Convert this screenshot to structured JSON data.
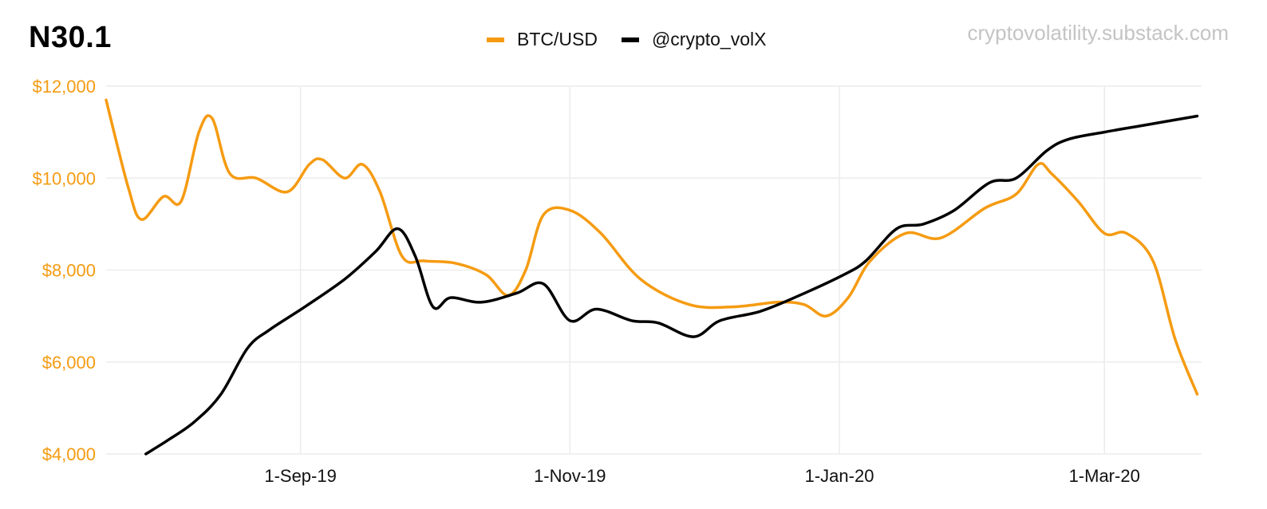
{
  "chart_data": {
    "type": "line",
    "title": "N30.1",
    "watermark": "cryptovolatility.substack.com",
    "x_ticks": [
      "1-Sep-19",
      "1-Nov-19",
      "1-Jan-20",
      "1-Mar-20"
    ],
    "x_tick_dates": [
      "2019-09-01",
      "2019-11-01",
      "2020-01-01",
      "2020-03-01"
    ],
    "x_range": [
      "2019-07-19",
      "2020-03-23"
    ],
    "y_ticks": [
      "$4,000",
      "$6,000",
      "$8,000",
      "$10,000",
      "$12,000"
    ],
    "ylim": [
      4000,
      12000
    ],
    "legend_position": "top-center",
    "grid": true,
    "series": [
      {
        "name": "BTC/USD",
        "color": "#F59B12",
        "points": [
          [
            "2019-07-19",
            11700
          ],
          [
            "2019-07-24",
            9800
          ],
          [
            "2019-07-27",
            9100
          ],
          [
            "2019-08-01",
            9600
          ],
          [
            "2019-08-05",
            9500
          ],
          [
            "2019-08-09",
            11000
          ],
          [
            "2019-08-12",
            11300
          ],
          [
            "2019-08-16",
            10100
          ],
          [
            "2019-08-22",
            10000
          ],
          [
            "2019-08-29",
            9700
          ],
          [
            "2019-09-03",
            10300
          ],
          [
            "2019-09-06",
            10400
          ],
          [
            "2019-09-11",
            10000
          ],
          [
            "2019-09-15",
            10300
          ],
          [
            "2019-09-19",
            9700
          ],
          [
            "2019-09-24",
            8300
          ],
          [
            "2019-09-29",
            8200
          ],
          [
            "2019-10-06",
            8150
          ],
          [
            "2019-10-13",
            7900
          ],
          [
            "2019-10-18",
            7450
          ],
          [
            "2019-10-22",
            8000
          ],
          [
            "2019-10-26",
            9200
          ],
          [
            "2019-11-01",
            9300
          ],
          [
            "2019-11-08",
            8800
          ],
          [
            "2019-11-17",
            7800
          ],
          [
            "2019-11-28",
            7250
          ],
          [
            "2019-12-08",
            7200
          ],
          [
            "2019-12-18",
            7300
          ],
          [
            "2019-12-24",
            7250
          ],
          [
            "2019-12-29",
            7000
          ],
          [
            "2020-01-03",
            7400
          ],
          [
            "2020-01-08",
            8200
          ],
          [
            "2020-01-16",
            8800
          ],
          [
            "2020-01-24",
            8700
          ],
          [
            "2020-02-03",
            9350
          ],
          [
            "2020-02-10",
            9650
          ],
          [
            "2020-02-15",
            10300
          ],
          [
            "2020-02-18",
            10100
          ],
          [
            "2020-02-24",
            9500
          ],
          [
            "2020-03-01",
            8800
          ],
          [
            "2020-03-06",
            8800
          ],
          [
            "2020-03-12",
            8200
          ],
          [
            "2020-03-17",
            6500
          ],
          [
            "2020-03-22",
            5300
          ]
        ]
      },
      {
        "name": "@crypto_volX",
        "color": "#000000",
        "points": [
          [
            "2019-07-28",
            4000
          ],
          [
            "2019-08-02",
            4300
          ],
          [
            "2019-08-08",
            4700
          ],
          [
            "2019-08-14",
            5300
          ],
          [
            "2019-08-20",
            6300
          ],
          [
            "2019-08-25",
            6700
          ],
          [
            "2019-09-02",
            7200
          ],
          [
            "2019-09-11",
            7800
          ],
          [
            "2019-09-18",
            8400
          ],
          [
            "2019-09-23",
            8900
          ],
          [
            "2019-09-27",
            8300
          ],
          [
            "2019-10-01",
            7200
          ],
          [
            "2019-10-05",
            7400
          ],
          [
            "2019-10-12",
            7300
          ],
          [
            "2019-10-20",
            7500
          ],
          [
            "2019-10-26",
            7700
          ],
          [
            "2019-11-01",
            6900
          ],
          [
            "2019-11-07",
            7150
          ],
          [
            "2019-11-15",
            6900
          ],
          [
            "2019-11-21",
            6850
          ],
          [
            "2019-11-29",
            6550
          ],
          [
            "2019-12-05",
            6900
          ],
          [
            "2019-12-14",
            7100
          ],
          [
            "2019-12-23",
            7450
          ],
          [
            "2020-01-02",
            7900
          ],
          [
            "2020-01-07",
            8200
          ],
          [
            "2020-01-14",
            8900
          ],
          [
            "2020-01-20",
            9000
          ],
          [
            "2020-01-27",
            9300
          ],
          [
            "2020-02-04",
            9900
          ],
          [
            "2020-02-10",
            10000
          ],
          [
            "2020-02-17",
            10600
          ],
          [
            "2020-02-22",
            10850
          ],
          [
            "2020-03-01",
            11000
          ],
          [
            "2020-03-10",
            11150
          ],
          [
            "2020-03-22",
            11350
          ]
        ]
      }
    ]
  }
}
